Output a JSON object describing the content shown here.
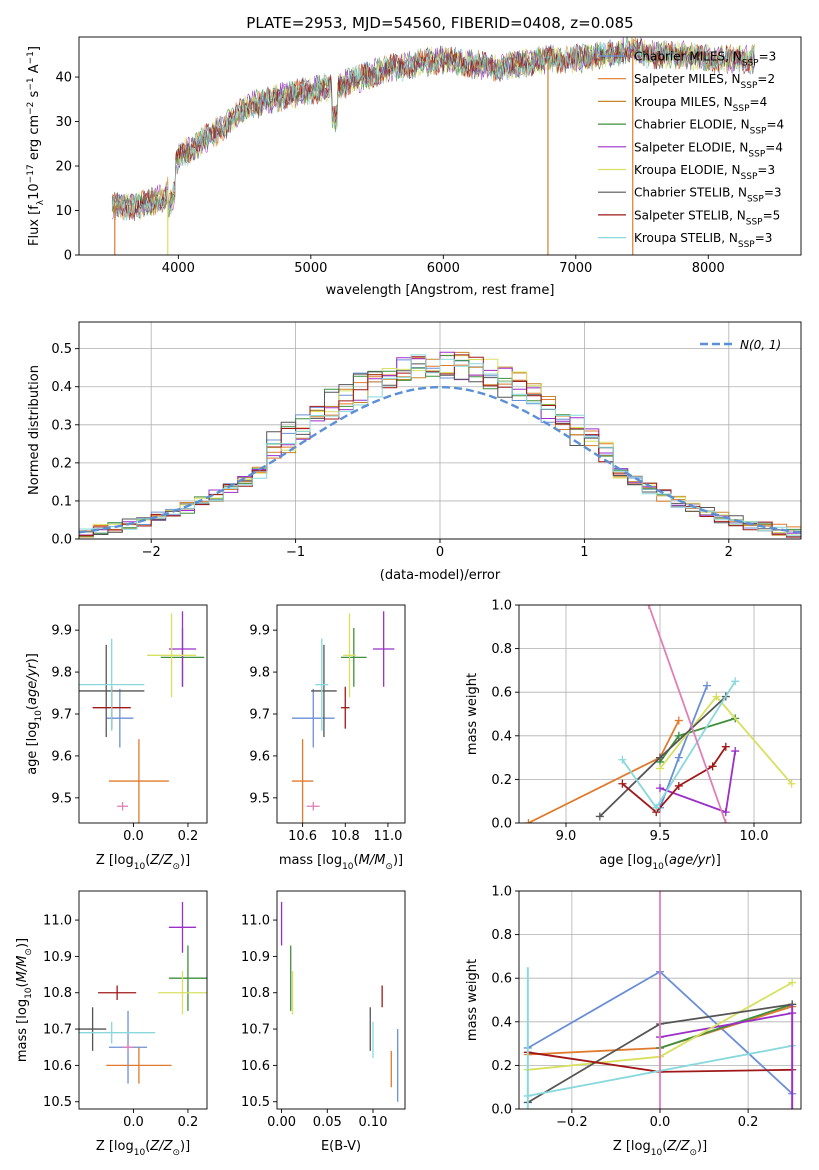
{
  "title": "PLATE=2953, MJD=54560, FIBERID=0408, z=0.085",
  "colors": {
    "Chabrier MILES": "#6b8fd6",
    "Salpeter MILES": "#e07a2c",
    "Kroupa MILES": "#c8862a",
    "Chabrier ELODIE": "#3f8f3f",
    "Salpeter ELODIE": "#9b30c8",
    "Kroupa ELODIE": "#d8e060",
    "Chabrier STELIB": "#555555",
    "Salpeter STELIB": "#a01818",
    "Kroupa STELIB": "#88d8dc",
    "pink": "#e080b8",
    "gauss": "#5b8fd6"
  },
  "chart_data": [
    {
      "id": "spectrum",
      "type": "line",
      "xlabel": "wavelength [Angstrom, rest frame]",
      "ylabel": "Flux [f_λ10^-17 erg cm^-2 s^-1 A^-1]",
      "xlim": [
        3250,
        8700
      ],
      "ylim": [
        0,
        49
      ],
      "xticks": [
        4000,
        5000,
        6000,
        7000,
        8000
      ],
      "yticks": [
        0,
        10,
        20,
        30,
        40
      ],
      "grid": false,
      "legend_position": "right",
      "legend": [
        {
          "name": "Chabrier MILES",
          "nssp": "3"
        },
        {
          "name": "Salpeter MILES",
          "nssp": "2"
        },
        {
          "name": "Kroupa MILES",
          "nssp": "4"
        },
        {
          "name": "Chabrier ELODIE",
          "nssp": "4"
        },
        {
          "name": "Salpeter ELODIE",
          "nssp": "4"
        },
        {
          "name": "Kroupa ELODIE",
          "nssp": "3"
        },
        {
          "name": "Chabrier STELIB",
          "nssp": "3"
        },
        {
          "name": "Salpeter STELIB",
          "nssp": "5"
        },
        {
          "name": "Kroupa STELIB",
          "nssp": "3"
        }
      ],
      "continuum": [
        [
          3500,
          11
        ],
        [
          3700,
          11
        ],
        [
          3900,
          13
        ],
        [
          3950,
          17
        ],
        [
          4000,
          22
        ],
        [
          4200,
          26
        ],
        [
          4350,
          29
        ],
        [
          4500,
          33
        ],
        [
          4700,
          35
        ],
        [
          5000,
          37
        ],
        [
          5200,
          38
        ],
        [
          5400,
          40
        ],
        [
          5600,
          42
        ],
        [
          5800,
          43
        ],
        [
          6000,
          44
        ],
        [
          6200,
          43
        ],
        [
          6400,
          42
        ],
        [
          6600,
          43
        ],
        [
          6800,
          44
        ],
        [
          7000,
          44
        ],
        [
          7200,
          45
        ],
        [
          7400,
          46
        ],
        [
          7600,
          45
        ],
        [
          7800,
          45
        ],
        [
          8000,
          44
        ],
        [
          8200,
          44
        ],
        [
          8350,
          44
        ]
      ]
    },
    {
      "id": "residual-hist",
      "type": "histogram",
      "xlabel": "(data-model)/error",
      "ylabel": "Normed distribution",
      "xlim": [
        -2.5,
        2.5
      ],
      "ylim": [
        0,
        0.57
      ],
      "xticks": [
        -2,
        -1,
        0,
        1,
        2
      ],
      "yticks": [
        0.0,
        0.1,
        0.2,
        0.3,
        0.4,
        0.5
      ],
      "grid": true,
      "legend_position": "top-right",
      "gauss_label": "N(0, 1)"
    },
    {
      "id": "age-vs-Z",
      "type": "scatter",
      "xlabel": "Z [log10(Z/Z_sun)]",
      "ylabel": "age [log10(age/yr)]",
      "xlim": [
        -0.2,
        0.27
      ],
      "ylim": [
        9.44,
        9.96
      ],
      "xticks": [
        0.0,
        0.2
      ],
      "yticks": [
        9.5,
        9.6,
        9.7,
        9.8,
        9.9
      ],
      "grid": false,
      "points": [
        {
          "series": "Chabrier MILES",
          "x": -0.05,
          "y": 9.69,
          "xerr": 0.05,
          "yerr": 0.07
        },
        {
          "series": "Salpeter MILES",
          "x": 0.02,
          "y": 9.54,
          "xerr": 0.11,
          "yerr": 0.1
        },
        {
          "series": "Chabrier ELODIE",
          "x": 0.18,
          "y": 9.835,
          "xerr": 0.08,
          "yerr": 0.07
        },
        {
          "series": "Salpeter ELODIE",
          "x": 0.18,
          "y": 9.855,
          "xerr": 0.05,
          "yerr": 0.09
        },
        {
          "series": "Kroupa ELODIE",
          "x": 0.14,
          "y": 9.84,
          "xerr": 0.09,
          "yerr": 0.1
        },
        {
          "series": "Chabrier STELIB",
          "x": -0.1,
          "y": 9.755,
          "xerr": 0.14,
          "yerr": 0.11
        },
        {
          "series": "Salpeter STELIB",
          "x": -0.08,
          "y": 9.715,
          "xerr": 0.07,
          "yerr": 0.05
        },
        {
          "series": "Kroupa STELIB",
          "x": -0.08,
          "y": 9.77,
          "xerr": 0.12,
          "yerr": 0.11
        },
        {
          "series": "pink",
          "x": -0.04,
          "y": 9.48,
          "xerr": 0.02,
          "yerr": 0.01
        }
      ]
    },
    {
      "id": "age-vs-mass",
      "type": "scatter",
      "xlabel": "mass [log10(M/M_sun)]",
      "xlim": [
        10.48,
        11.08
      ],
      "ylim": [
        9.44,
        9.96
      ],
      "xticks": [
        10.6,
        10.8,
        11.0
      ],
      "yticks": [
        9.5,
        9.6,
        9.7,
        9.8,
        9.9
      ],
      "grid": false,
      "points": [
        {
          "series": "Chabrier MILES",
          "x": 10.65,
          "y": 9.69,
          "xerr": 0.1,
          "yerr": 0.07
        },
        {
          "series": "Salpeter MILES",
          "x": 10.6,
          "y": 9.54,
          "xerr": 0.05,
          "yerr": 0.1
        },
        {
          "series": "Chabrier ELODIE",
          "x": 10.84,
          "y": 9.835,
          "xerr": 0.06,
          "yerr": 0.07
        },
        {
          "series": "Salpeter ELODIE",
          "x": 10.98,
          "y": 9.855,
          "xerr": 0.05,
          "yerr": 0.09
        },
        {
          "series": "Kroupa ELODIE",
          "x": 10.82,
          "y": 9.84,
          "xerr": 0.03,
          "yerr": 0.1
        },
        {
          "series": "Chabrier STELIB",
          "x": 10.7,
          "y": 9.755,
          "xerr": 0.06,
          "yerr": 0.11
        },
        {
          "series": "Salpeter STELIB",
          "x": 10.8,
          "y": 9.715,
          "xerr": 0.02,
          "yerr": 0.05
        },
        {
          "series": "Kroupa STELIB",
          "x": 10.69,
          "y": 9.77,
          "xerr": 0.03,
          "yerr": 0.11
        },
        {
          "series": "pink",
          "x": 10.65,
          "y": 9.48,
          "xerr": 0.03,
          "yerr": 0.01
        }
      ]
    },
    {
      "id": "mass-weight-vs-age",
      "type": "line",
      "xlabel": "age [log10(age/yr)]",
      "ylabel": "mass weight",
      "xlim": [
        8.75,
        10.25
      ],
      "ylim": [
        0,
        1.0
      ],
      "xticks": [
        9.0,
        9.5,
        10.0
      ],
      "yticks": [
        0.0,
        0.2,
        0.4,
        0.6,
        0.8,
        1.0
      ],
      "grid": true,
      "series": [
        {
          "name": "Chabrier MILES",
          "x": [
            9.5,
            9.6,
            9.75
          ],
          "y": [
            0.07,
            0.3,
            0.63
          ]
        },
        {
          "name": "Salpeter MILES",
          "x": [
            8.8,
            9.5,
            9.6
          ],
          "y": [
            0.0,
            0.3,
            0.47
          ]
        },
        {
          "name": "Chabrier ELODIE",
          "x": [
            9.5,
            9.6,
            9.9
          ],
          "y": [
            0.28,
            0.4,
            0.48
          ]
        },
        {
          "name": "Salpeter ELODIE",
          "x": [
            9.5,
            9.85,
            9.9
          ],
          "y": [
            0.16,
            0.05,
            0.33
          ]
        },
        {
          "name": "Kroupa ELODIE",
          "x": [
            9.5,
            9.8,
            10.2
          ],
          "y": [
            0.25,
            0.58,
            0.18
          ]
        },
        {
          "name": "Chabrier STELIB",
          "x": [
            9.18,
            9.5,
            9.85
          ],
          "y": [
            0.03,
            0.3,
            0.58
          ]
        },
        {
          "name": "Salpeter STELIB",
          "x": [
            9.3,
            9.48,
            9.6,
            9.78,
            9.85
          ],
          "y": [
            0.18,
            0.05,
            0.17,
            0.26,
            0.35
          ]
        },
        {
          "name": "Kroupa STELIB",
          "x": [
            9.3,
            9.48,
            9.9
          ],
          "y": [
            0.29,
            0.07,
            0.65
          ]
        },
        {
          "name": "pink",
          "x": [
            9.44,
            9.85
          ],
          "y": [
            1.0,
            0.0
          ]
        }
      ]
    },
    {
      "id": "mass-vs-Z",
      "type": "scatter",
      "xlabel": "Z [log10(Z/Z_sun)]",
      "ylabel": "mass [log10(M/M_sun)]",
      "xlim": [
        -0.2,
        0.27
      ],
      "ylim": [
        10.48,
        11.08
      ],
      "xticks": [
        0.0,
        0.2
      ],
      "yticks": [
        10.5,
        10.6,
        10.7,
        10.8,
        10.9,
        11.0
      ],
      "grid": false,
      "points": [
        {
          "series": "Chabrier MILES",
          "x": -0.02,
          "y": 10.65,
          "xerr": 0.07,
          "yerr": 0.1
        },
        {
          "series": "Salpeter MILES",
          "x": 0.02,
          "y": 10.6,
          "xerr": 0.12,
          "yerr": 0.05
        },
        {
          "series": "Chabrier ELODIE",
          "x": 0.2,
          "y": 10.84,
          "xerr": 0.07,
          "yerr": 0.09
        },
        {
          "series": "Salpeter ELODIE",
          "x": 0.18,
          "y": 10.98,
          "xerr": 0.05,
          "yerr": 0.07
        },
        {
          "series": "Kroupa ELODIE",
          "x": 0.18,
          "y": 10.8,
          "xerr": 0.09,
          "yerr": 0.06
        },
        {
          "series": "Chabrier STELIB",
          "x": -0.15,
          "y": 10.7,
          "xerr": 0.05,
          "yerr": 0.06
        },
        {
          "series": "Salpeter STELIB",
          "x": -0.06,
          "y": 10.8,
          "xerr": 0.07,
          "yerr": 0.02
        },
        {
          "series": "Kroupa STELIB",
          "x": -0.08,
          "y": 10.69,
          "xerr": 0.16,
          "yerr": 0.03
        },
        {
          "series": "pink",
          "x": -0.02,
          "y": 10.65,
          "xerr": 0.02,
          "yerr": 0.01
        }
      ]
    },
    {
      "id": "mass-vs-ebv",
      "type": "scatter",
      "xlabel": "E(B-V)",
      "xlim": [
        -0.005,
        0.135
      ],
      "ylim": [
        10.48,
        11.08
      ],
      "xticks": [
        0.0,
        0.05,
        0.1
      ],
      "xtick_labels": [
        "0.00",
        "0.05",
        "0.10"
      ],
      "yticks": [
        10.5,
        10.6,
        10.7,
        10.8,
        10.9,
        11.0
      ],
      "grid": false,
      "points": [
        {
          "series": "Chabrier MILES",
          "x": 0.127,
          "y": 10.6,
          "yerr": 0.1
        },
        {
          "series": "Salpeter MILES",
          "x": 0.12,
          "y": 10.59,
          "yerr": 0.05
        },
        {
          "series": "Chabrier ELODIE",
          "x": 0.01,
          "y": 10.84,
          "yerr": 0.09
        },
        {
          "series": "Salpeter ELODIE",
          "x": 0.0,
          "y": 10.99,
          "yerr": 0.06
        },
        {
          "series": "Kroupa ELODIE",
          "x": 0.012,
          "y": 10.8,
          "yerr": 0.06
        },
        {
          "series": "Chabrier STELIB",
          "x": 0.097,
          "y": 10.7,
          "yerr": 0.06
        },
        {
          "series": "Salpeter STELIB",
          "x": 0.11,
          "y": 10.79,
          "yerr": 0.03
        },
        {
          "series": "Kroupa STELIB",
          "x": 0.1,
          "y": 10.67,
          "yerr": 0.05
        }
      ]
    },
    {
      "id": "mass-weight-vs-Z",
      "type": "line",
      "xlabel": "Z [log10(Z/Z_sun)]",
      "ylabel": "mass weight",
      "xlim": [
        -0.32,
        0.32
      ],
      "ylim": [
        0,
        1.0
      ],
      "xticks": [
        -0.2,
        0.0,
        0.2
      ],
      "yticks": [
        0.0,
        0.2,
        0.4,
        0.6,
        0.8,
        1.0
      ],
      "grid": true,
      "series": [
        {
          "name": "Chabrier MILES",
          "x": [
            -0.3,
            0.0,
            0.3
          ],
          "y": [
            0.28,
            0.63,
            0.07
          ]
        },
        {
          "name": "Salpeter MILES",
          "x": [
            -0.3,
            0.0,
            0.3
          ],
          "y": [
            0.25,
            0.28,
            0.47
          ]
        },
        {
          "name": "Chabrier ELODIE",
          "x": [
            0.0,
            0.3
          ],
          "y": [
            0.28,
            0.48
          ]
        },
        {
          "name": "Salpeter ELODIE",
          "x": [
            0.0,
            0.3
          ],
          "y": [
            0.33,
            0.44
          ]
        },
        {
          "name": "Kroupa ELODIE",
          "x": [
            -0.3,
            0.0,
            0.3
          ],
          "y": [
            0.18,
            0.24,
            0.58
          ]
        },
        {
          "name": "Chabrier STELIB",
          "x": [
            -0.3,
            0.0,
            0.3
          ],
          "y": [
            0.03,
            0.39,
            0.48
          ]
        },
        {
          "name": "Salpeter STELIB",
          "x": [
            -0.3,
            0.0,
            0.3
          ],
          "y": [
            0.26,
            0.17,
            0.18
          ]
        },
        {
          "name": "Kroupa STELIB",
          "x": [
            -0.3,
            0.3
          ],
          "y": [
            0.06,
            0.29
          ]
        }
      ]
    }
  ]
}
